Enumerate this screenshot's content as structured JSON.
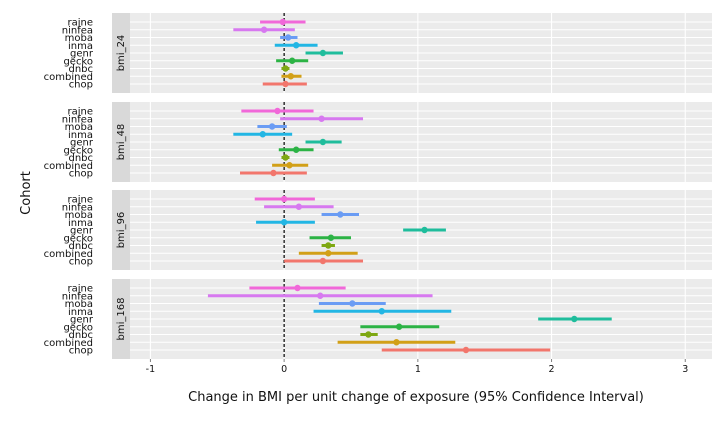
{
  "chart_data": {
    "type": "forest",
    "xlabel": "Change in BMI per unit change of exposure (95% Confidence Interval)",
    "ylabel": "Cohort",
    "xlim": [
      -1.25,
      3.2
    ],
    "x_ticks": [
      -1,
      0,
      1,
      2,
      3
    ],
    "x_tick_labels": [
      "-1",
      "0",
      "1",
      "2",
      "3"
    ],
    "reference_line": 0,
    "grid": true,
    "legend": "none",
    "cohorts": [
      "rajne",
      "ninfea",
      "moba",
      "inma",
      "genr",
      "gecko",
      "dnbc",
      "combined",
      "chop"
    ],
    "colors": {
      "rajne": "#f168d9",
      "ninfea": "#d779f0",
      "moba": "#6a9cf4",
      "inma": "#22b6e4",
      "genr": "#1fbd9c",
      "gecko": "#2cb345",
      "dnbc": "#7ea812",
      "combined": "#d2a017",
      "chop": "#f2766c"
    },
    "panels": [
      {
        "name": "bmi_24",
        "rows": [
          {
            "cohort": "rajne",
            "estimate": -0.01,
            "lower": -0.18,
            "upper": 0.16
          },
          {
            "cohort": "ninfea",
            "estimate": -0.15,
            "lower": -0.38,
            "upper": 0.08
          },
          {
            "cohort": "moba",
            "estimate": 0.03,
            "lower": -0.03,
            "upper": 0.1
          },
          {
            "cohort": "inma",
            "estimate": 0.09,
            "lower": -0.07,
            "upper": 0.25
          },
          {
            "cohort": "genr",
            "estimate": 0.29,
            "lower": 0.16,
            "upper": 0.44
          },
          {
            "cohort": "gecko",
            "estimate": 0.06,
            "lower": -0.06,
            "upper": 0.18
          },
          {
            "cohort": "dnbc",
            "estimate": 0.01,
            "lower": -0.02,
            "upper": 0.04
          },
          {
            "cohort": "combined",
            "estimate": 0.05,
            "lower": -0.02,
            "upper": 0.13
          },
          {
            "cohort": "chop",
            "estimate": 0.01,
            "lower": -0.16,
            "upper": 0.17
          }
        ]
      },
      {
        "name": "bmi_48",
        "rows": [
          {
            "cohort": "rajne",
            "estimate": -0.05,
            "lower": -0.32,
            "upper": 0.22
          },
          {
            "cohort": "ninfea",
            "estimate": 0.28,
            "lower": -0.03,
            "upper": 0.59
          },
          {
            "cohort": "moba",
            "estimate": -0.09,
            "lower": -0.2,
            "upper": 0.02
          },
          {
            "cohort": "inma",
            "estimate": -0.16,
            "lower": -0.38,
            "upper": 0.06
          },
          {
            "cohort": "genr",
            "estimate": 0.29,
            "lower": 0.16,
            "upper": 0.43
          },
          {
            "cohort": "gecko",
            "estimate": 0.09,
            "lower": -0.04,
            "upper": 0.22
          },
          {
            "cohort": "dnbc",
            "estimate": 0.01,
            "lower": -0.02,
            "upper": 0.04
          },
          {
            "cohort": "combined",
            "estimate": 0.04,
            "lower": -0.09,
            "upper": 0.18
          },
          {
            "cohort": "chop",
            "estimate": -0.08,
            "lower": -0.33,
            "upper": 0.17
          }
        ]
      },
      {
        "name": "bmi_96",
        "rows": [
          {
            "cohort": "rajne",
            "estimate": 0.0,
            "lower": -0.22,
            "upper": 0.23
          },
          {
            "cohort": "ninfea",
            "estimate": 0.11,
            "lower": -0.15,
            "upper": 0.37
          },
          {
            "cohort": "moba",
            "estimate": 0.42,
            "lower": 0.28,
            "upper": 0.56
          },
          {
            "cohort": "inma",
            "estimate": 0.0,
            "lower": -0.21,
            "upper": 0.23
          },
          {
            "cohort": "genr",
            "estimate": 1.05,
            "lower": 0.89,
            "upper": 1.21
          },
          {
            "cohort": "gecko",
            "estimate": 0.35,
            "lower": 0.19,
            "upper": 0.5
          },
          {
            "cohort": "dnbc",
            "estimate": 0.33,
            "lower": 0.28,
            "upper": 0.38
          },
          {
            "cohort": "combined",
            "estimate": 0.33,
            "lower": 0.11,
            "upper": 0.55
          },
          {
            "cohort": "chop",
            "estimate": 0.29,
            "lower": 0.0,
            "upper": 0.59
          }
        ]
      },
      {
        "name": "bmi_168",
        "rows": [
          {
            "cohort": "rajne",
            "estimate": 0.1,
            "lower": -0.26,
            "upper": 0.46
          },
          {
            "cohort": "ninfea",
            "estimate": 0.27,
            "lower": -0.57,
            "upper": 1.11
          },
          {
            "cohort": "moba",
            "estimate": 0.51,
            "lower": 0.26,
            "upper": 0.76
          },
          {
            "cohort": "inma",
            "estimate": 0.73,
            "lower": 0.22,
            "upper": 1.25
          },
          {
            "cohort": "genr",
            "estimate": 2.17,
            "lower": 1.9,
            "upper": 2.45
          },
          {
            "cohort": "gecko",
            "estimate": 0.86,
            "lower": 0.57,
            "upper": 1.16
          },
          {
            "cohort": "dnbc",
            "estimate": 0.63,
            "lower": 0.57,
            "upper": 0.7
          },
          {
            "cohort": "combined",
            "estimate": 0.84,
            "lower": 0.4,
            "upper": 1.28
          },
          {
            "cohort": "chop",
            "estimate": 1.36,
            "lower": 0.73,
            "upper": 1.99
          }
        ]
      }
    ]
  }
}
